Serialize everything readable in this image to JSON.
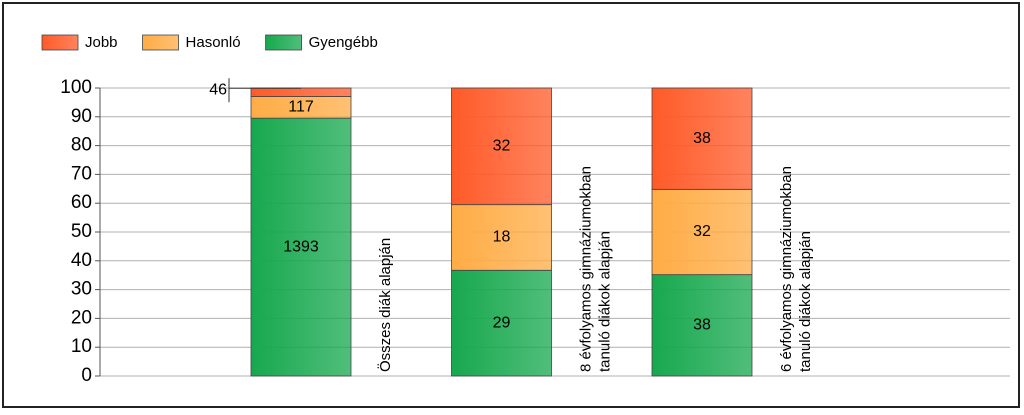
{
  "chart_data": {
    "type": "percent_stacked_bar",
    "categories": [
      [
        "Összes diák alapján"
      ],
      [
        "8 évfolyamos gimnáziumokban",
        "tanuló diákok alapján"
      ],
      [
        "6 évfolyamos gimnáziumokban",
        "tanuló diákok alapján"
      ]
    ],
    "series": [
      {
        "name": "Gyengébb",
        "color": "#17a84e",
        "values": [
          1393,
          29,
          38
        ]
      },
      {
        "name": "Hasonló",
        "color": "#ffac45",
        "values": [
          117,
          18,
          32
        ]
      },
      {
        "name": "Jobb",
        "color": "#ff5a28",
        "values": [
          46,
          32,
          38
        ]
      }
    ],
    "legend_order": [
      2,
      1,
      0
    ],
    "ylim": [
      0,
      100
    ],
    "yticks": [
      0,
      10,
      20,
      30,
      40,
      50,
      60,
      70,
      80,
      90,
      100
    ],
    "grid": true
  }
}
